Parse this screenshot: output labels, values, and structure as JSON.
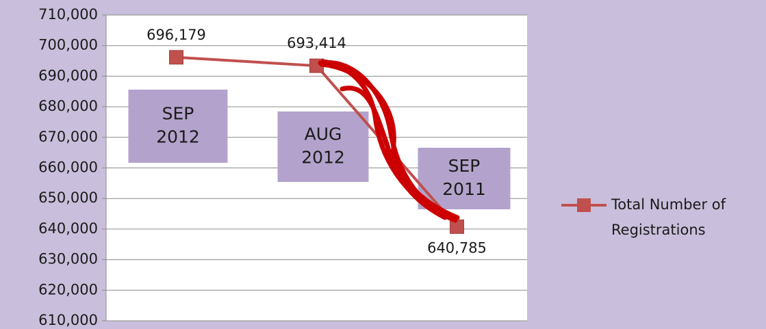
{
  "chart_data": {
    "type": "line",
    "categories": [
      "SEP 2012",
      "AUG 2012",
      "SEP 2011"
    ],
    "series": [
      {
        "name": "Total Number of Registrations",
        "color": "#c0504d",
        "values": [
          696179,
          693414,
          640785
        ],
        "value_labels": [
          "696,179",
          "693,414",
          "640,785"
        ]
      }
    ],
    "ylim": [
      610000,
      710000
    ],
    "yticks": [
      {
        "value": 610000,
        "label": "610,000"
      },
      {
        "value": 620000,
        "label": "620,000"
      },
      {
        "value": 630000,
        "label": "630,000"
      },
      {
        "value": 640000,
        "label": "640,000"
      },
      {
        "value": 650000,
        "label": "650,000"
      },
      {
        "value": 660000,
        "label": "660,000"
      },
      {
        "value": 670000,
        "label": "670,000"
      },
      {
        "value": 680000,
        "label": "680,000"
      },
      {
        "value": 690000,
        "label": "690,000"
      },
      {
        "value": 700000,
        "label": "700,000"
      },
      {
        "value": 710000,
        "label": "710,000"
      }
    ],
    "grid": true,
    "legend": "right"
  }
}
